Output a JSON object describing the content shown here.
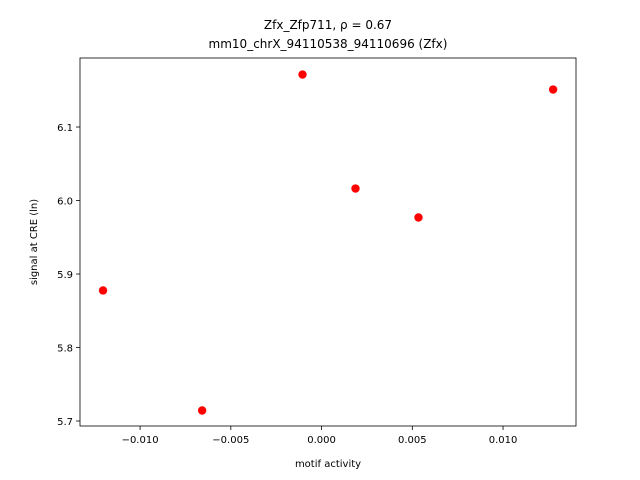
{
  "chart_data": {
    "type": "scatter",
    "title": "Zfx_Zfp711, ρ = 0.67",
    "subtitle": "mm10_chrX_94110538_94110696 (Zfx)",
    "x_label": "motif activity",
    "y_label": "signal at CRE (ln)",
    "series": [
      {
        "color": "#ff0000",
        "x": [
          -0.01204,
          -0.00658,
          -0.00105,
          0.00187,
          0.00534,
          0.01276
        ],
        "values": [
          5.8776,
          5.7143,
          6.1714,
          6.0163,
          5.9769,
          6.151
        ]
      }
    ],
    "xlim": [
      -0.01331,
      0.01402
    ],
    "ylim": [
      5.6932,
      6.1939
    ],
    "xticks": [
      {
        "value": -0.01,
        "label": "−0.010"
      },
      {
        "value": -0.005,
        "label": "−0.005"
      },
      {
        "value": 0,
        "label": "0.000"
      },
      {
        "value": 0.005,
        "label": "0.005"
      },
      {
        "value": 0.01,
        "label": "0.010"
      }
    ],
    "yticks": [
      5.7,
      5.8,
      5.9,
      {
        "value": 6.0,
        "label": "6.0"
      },
      6.1
    ],
    "grid": false
  }
}
